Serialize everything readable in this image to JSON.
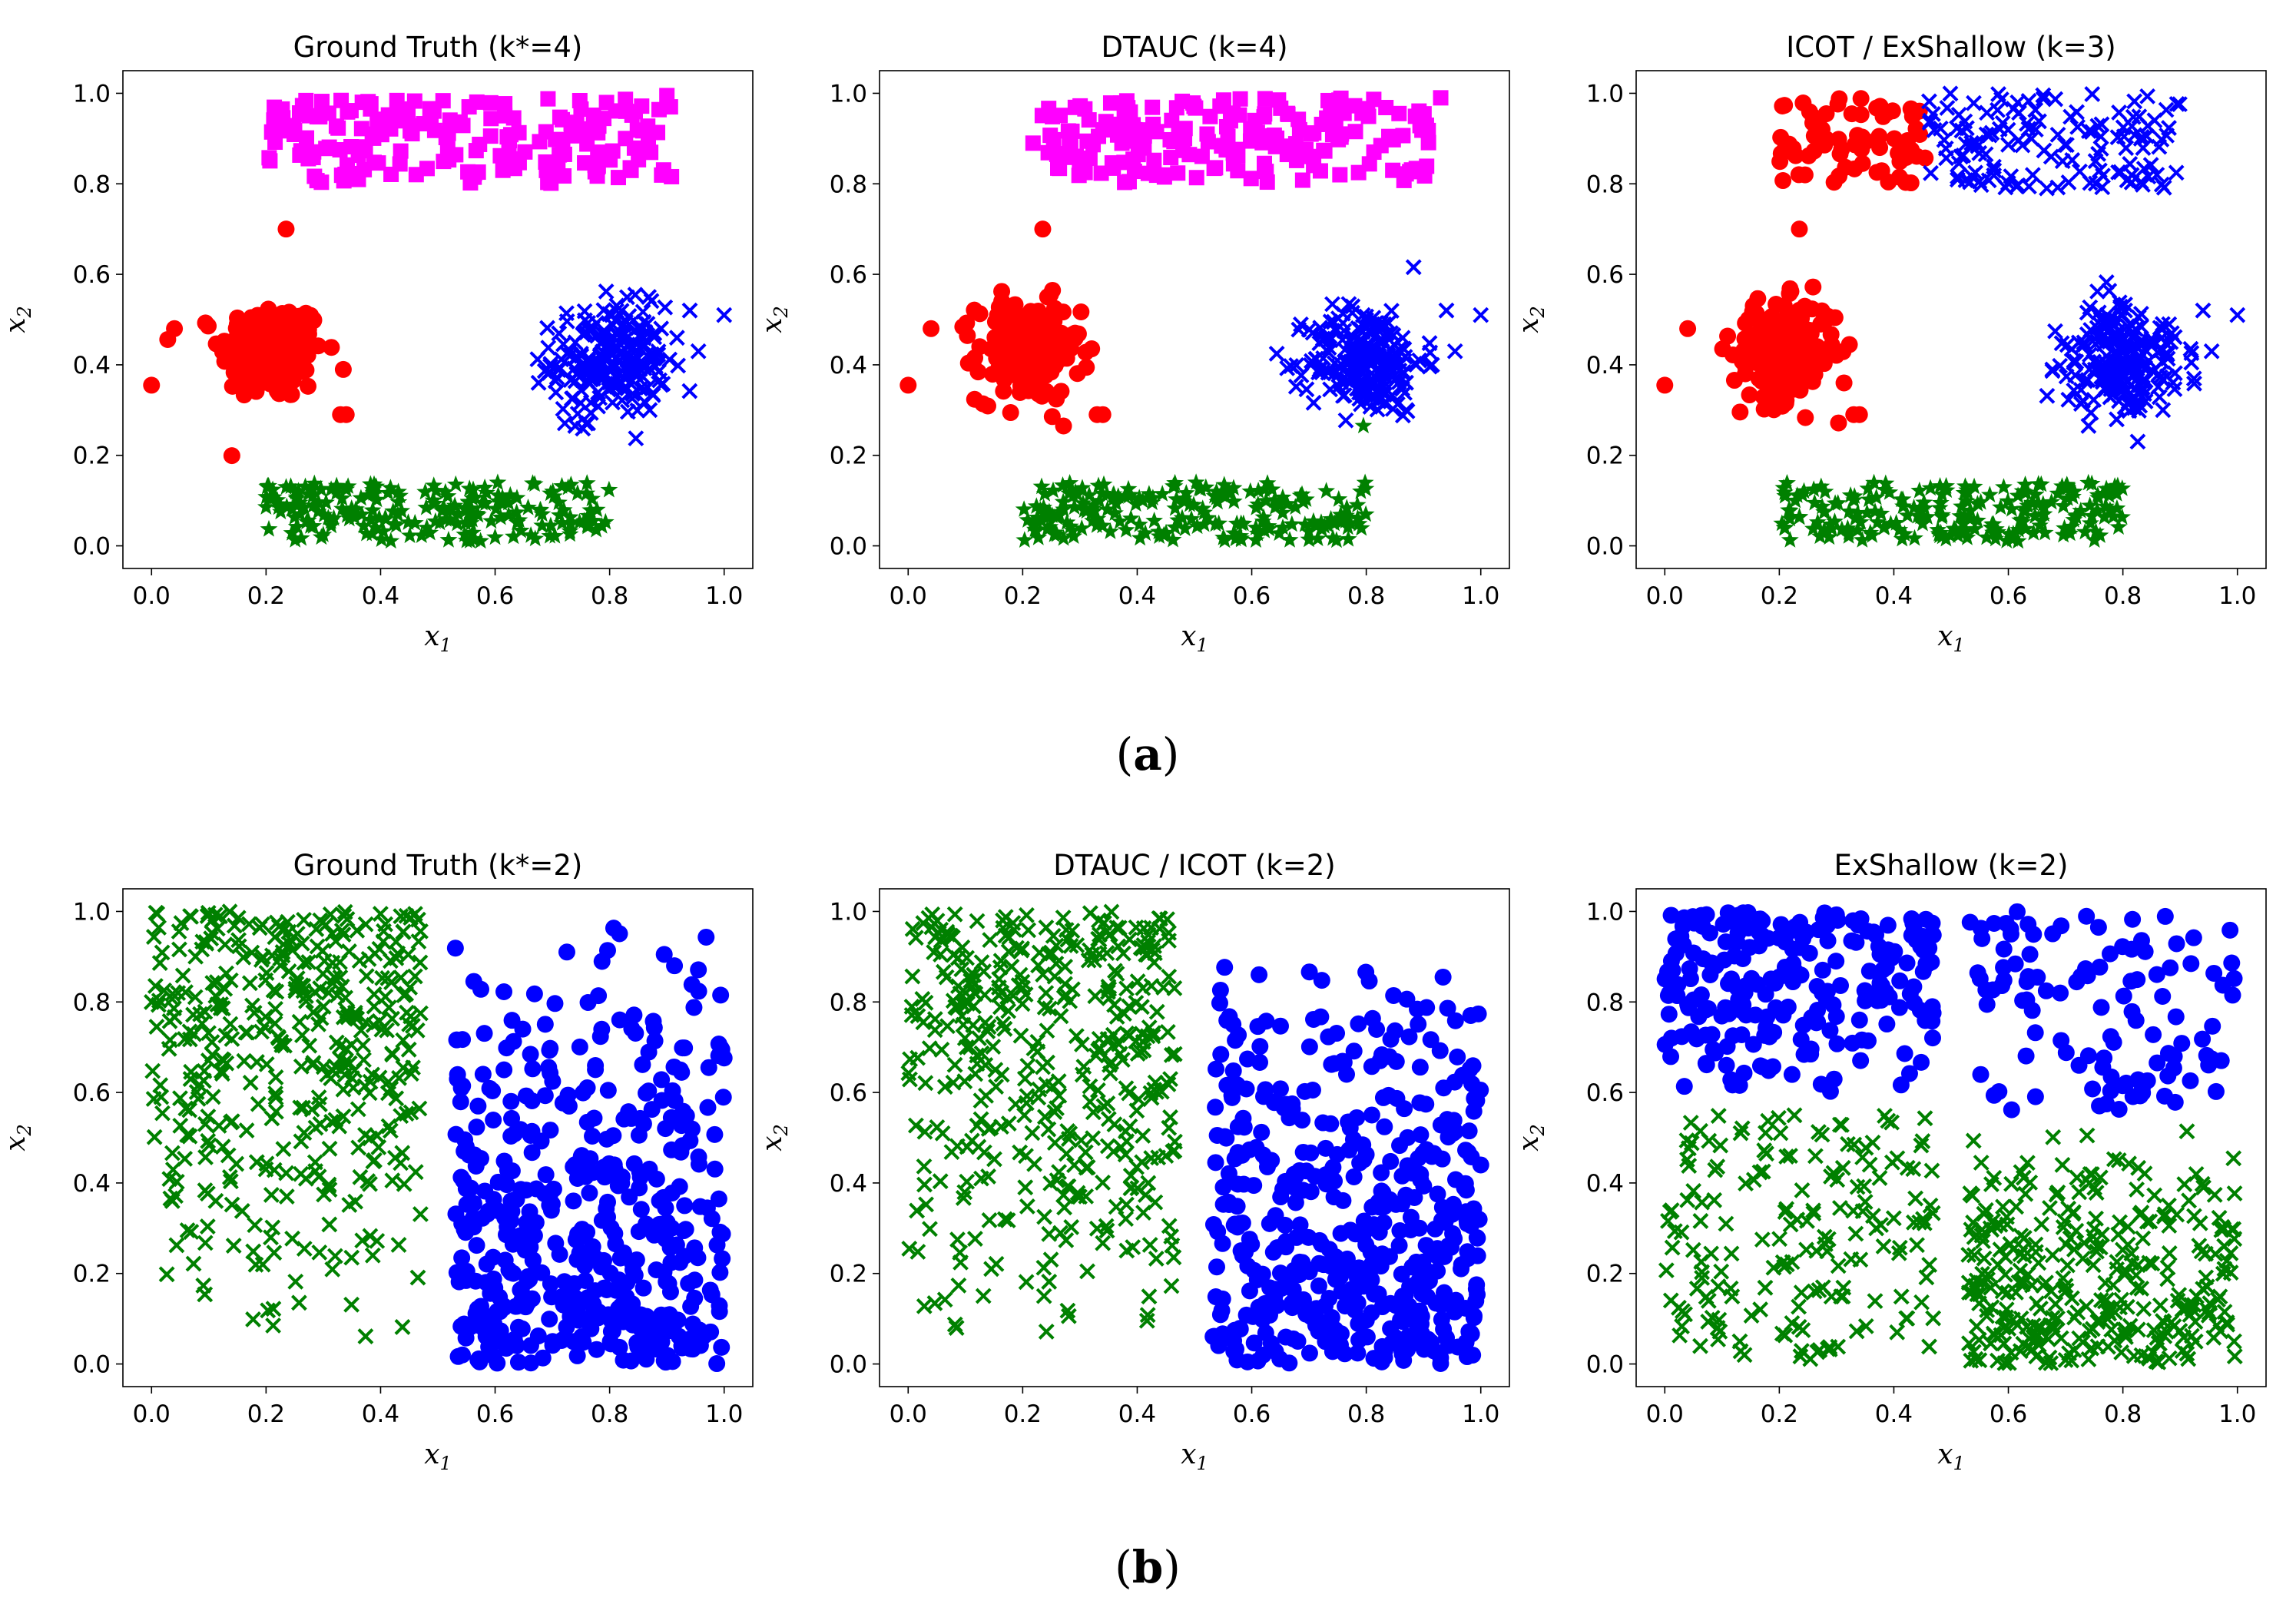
{
  "figure": {
    "captions": [
      {
        "open": "(",
        "label": "a",
        "close": ")"
      },
      {
        "open": "(",
        "label": "b",
        "close": ")"
      }
    ],
    "colors": {
      "red": "#ff0000",
      "blue": "#0000ff",
      "green": "#008000",
      "magenta": "#ff00ff"
    }
  },
  "chart_data": [
    {
      "type": "scatter",
      "row": "a",
      "title": "Ground Truth (k*=4)",
      "xlabel": "x",
      "xlabel_sub": "1",
      "ylabel": "x",
      "ylabel_sub": "2",
      "xlim": [
        -0.05,
        1.05
      ],
      "ylim": [
        -0.05,
        1.05
      ],
      "xticks": [
        "0.0",
        "0.2",
        "0.4",
        "0.6",
        "0.8",
        "1.0"
      ],
      "yticks": [
        "0.0",
        "0.2",
        "0.4",
        "0.6",
        "0.8",
        "1.0"
      ],
      "series": [
        {
          "name": "cluster-red-circles",
          "marker": "circle",
          "color": "#ff0000",
          "distribution": "gaussian",
          "center": [
            0.21,
            0.43
          ],
          "spread": [
            0.045,
            0.055
          ],
          "count": 210,
          "outliers": [
            [
              0.0,
              0.355
            ],
            [
              0.04,
              0.48
            ],
            [
              0.235,
              0.7
            ],
            [
              0.33,
              0.29
            ],
            [
              0.34,
              0.29
            ]
          ]
        },
        {
          "name": "cluster-blue-crosses",
          "marker": "x",
          "color": "#0000ff",
          "distribution": "gaussian",
          "center": [
            0.8,
            0.41
          ],
          "spread": [
            0.05,
            0.06
          ],
          "count": 230,
          "outliers": [
            [
              0.74,
              0.265
            ],
            [
              0.87,
              0.3
            ],
            [
              1.0,
              0.51
            ],
            [
              0.955,
              0.43
            ],
            [
              0.94,
              0.52
            ]
          ]
        },
        {
          "name": "cluster-magenta-squares",
          "marker": "square",
          "color": "#ff00ff",
          "distribution": "uniform",
          "xrange": [
            0.2,
            0.91
          ],
          "yrange": [
            0.8,
            0.99
          ],
          "count": 190,
          "outliers": [
            [
              0.9,
              0.995
            ]
          ]
        },
        {
          "name": "cluster-green-stars",
          "marker": "star",
          "color": "#008000",
          "distribution": "uniform",
          "xrange": [
            0.2,
            0.8
          ],
          "yrange": [
            0.01,
            0.14
          ],
          "count": 210
        }
      ]
    },
    {
      "type": "scatter",
      "row": "a",
      "title": "DTAUC (k=4)",
      "xlabel": "x",
      "xlabel_sub": "1",
      "ylabel": "x",
      "ylabel_sub": "2",
      "xlim": [
        -0.05,
        1.05
      ],
      "ylim": [
        -0.05,
        1.05
      ],
      "xticks": [
        "0.0",
        "0.2",
        "0.4",
        "0.6",
        "0.8",
        "1.0"
      ],
      "yticks": [
        "0.0",
        "0.2",
        "0.4",
        "0.6",
        "0.8",
        "1.0"
      ],
      "series": [
        {
          "name": "cluster-red-circles",
          "marker": "circle",
          "color": "#ff0000",
          "distribution": "gaussian",
          "center": [
            0.21,
            0.43
          ],
          "spread": [
            0.045,
            0.055
          ],
          "count": 210,
          "outliers": [
            [
              0.0,
              0.355
            ],
            [
              0.04,
              0.48
            ],
            [
              0.235,
              0.7
            ],
            [
              0.33,
              0.29
            ],
            [
              0.34,
              0.29
            ]
          ]
        },
        {
          "name": "cluster-blue-crosses",
          "marker": "x",
          "color": "#0000ff",
          "distribution": "gaussian",
          "center": [
            0.8,
            0.41
          ],
          "spread": [
            0.05,
            0.06
          ],
          "count": 225,
          "outliers": [
            [
              0.87,
              0.3
            ],
            [
              1.0,
              0.51
            ],
            [
              0.955,
              0.43
            ],
            [
              0.94,
              0.52
            ]
          ]
        },
        {
          "name": "cluster-magenta-squares",
          "marker": "square",
          "color": "#ff00ff",
          "distribution": "uniform",
          "xrange": [
            0.2,
            0.91
          ],
          "yrange": [
            0.8,
            0.99
          ],
          "count": 190,
          "outliers": [
            [
              0.93,
              0.99
            ]
          ]
        },
        {
          "name": "cluster-green-stars",
          "marker": "star",
          "color": "#008000",
          "distribution": "uniform",
          "xrange": [
            0.2,
            0.8
          ],
          "yrange": [
            0.01,
            0.14
          ],
          "count": 210,
          "outliers": [
            [
              0.795,
              0.265
            ]
          ]
        }
      ]
    },
    {
      "type": "scatter",
      "row": "a",
      "title": "ICOT / ExShallow (k=3)",
      "xlabel": "x",
      "xlabel_sub": "1",
      "ylabel": "x",
      "ylabel_sub": "2",
      "xlim": [
        -0.05,
        1.05
      ],
      "ylim": [
        -0.05,
        1.05
      ],
      "xticks": [
        "0.0",
        "0.2",
        "0.4",
        "0.6",
        "0.8",
        "1.0"
      ],
      "yticks": [
        "0.0",
        "0.2",
        "0.4",
        "0.6",
        "0.8",
        "1.0"
      ],
      "series": [
        {
          "name": "cluster-red-circles",
          "marker": "circle",
          "color": "#ff0000",
          "distribution": "gaussian",
          "center": [
            0.21,
            0.43
          ],
          "spread": [
            0.045,
            0.055
          ],
          "count": 210,
          "outliers": [
            [
              0.0,
              0.355
            ],
            [
              0.04,
              0.48
            ],
            [
              0.235,
              0.7
            ],
            [
              0.33,
              0.29
            ],
            [
              0.34,
              0.29
            ]
          ]
        },
        {
          "name": "cluster-red-circles-top",
          "marker": "circle",
          "color": "#ff0000",
          "distribution": "uniform",
          "xrange": [
            0.2,
            0.46
          ],
          "yrange": [
            0.8,
            0.99
          ],
          "count": 75
        },
        {
          "name": "cluster-blue-crosses",
          "marker": "x",
          "color": "#0000ff",
          "distribution": "gaussian",
          "center": [
            0.8,
            0.41
          ],
          "spread": [
            0.05,
            0.06
          ],
          "count": 230,
          "outliers": [
            [
              0.74,
              0.265
            ],
            [
              0.87,
              0.3
            ],
            [
              1.0,
              0.51
            ],
            [
              0.955,
              0.43
            ],
            [
              0.94,
              0.52
            ]
          ]
        },
        {
          "name": "cluster-blue-crosses-top",
          "marker": "x",
          "color": "#0000ff",
          "distribution": "uniform",
          "xrange": [
            0.46,
            0.9
          ],
          "yrange": [
            0.79,
            1.0
          ],
          "count": 140
        },
        {
          "name": "cluster-green-stars",
          "marker": "star",
          "color": "#008000",
          "distribution": "uniform",
          "xrange": [
            0.2,
            0.8
          ],
          "yrange": [
            0.01,
            0.14
          ],
          "count": 210
        }
      ]
    },
    {
      "type": "scatter",
      "row": "b",
      "title": "Ground Truth (k*=2)",
      "xlabel": "x",
      "xlabel_sub": "1",
      "ylabel": "x",
      "ylabel_sub": "2",
      "xlim": [
        -0.05,
        1.05
      ],
      "ylim": [
        -0.05,
        1.05
      ],
      "xticks": [
        "0.0",
        "0.2",
        "0.4",
        "0.6",
        "0.8",
        "1.0"
      ],
      "yticks": [
        "0.0",
        "0.2",
        "0.4",
        "0.6",
        "0.8",
        "1.0"
      ],
      "series": [
        {
          "name": "cluster-green-crosses",
          "marker": "x",
          "color": "#008000",
          "distribution": "uniform-biased-top",
          "xrange": [
            0.0,
            0.47
          ],
          "yrange": [
            0.0,
            1.0
          ],
          "count": 420
        },
        {
          "name": "cluster-blue-circles",
          "marker": "circle",
          "color": "#0000ff",
          "distribution": "uniform-biased-bottom",
          "xrange": [
            0.53,
            1.0
          ],
          "yrange": [
            0.0,
            1.0
          ],
          "count": 470
        }
      ]
    },
    {
      "type": "scatter",
      "row": "b",
      "title": "DTAUC / ICOT (k=2)",
      "xlabel": "x",
      "xlabel_sub": "1",
      "ylabel": "x",
      "ylabel_sub": "2",
      "xlim": [
        -0.05,
        1.05
      ],
      "ylim": [
        -0.05,
        1.05
      ],
      "xticks": [
        "0.0",
        "0.2",
        "0.4",
        "0.6",
        "0.8",
        "1.0"
      ],
      "yticks": [
        "0.0",
        "0.2",
        "0.4",
        "0.6",
        "0.8",
        "1.0"
      ],
      "series": [
        {
          "name": "cluster-green-crosses",
          "marker": "x",
          "color": "#008000",
          "distribution": "uniform-biased-top",
          "xrange": [
            0.0,
            0.47
          ],
          "yrange": [
            0.0,
            1.0
          ],
          "count": 420
        },
        {
          "name": "cluster-blue-circles",
          "marker": "circle",
          "color": "#0000ff",
          "distribution": "uniform-biased-bottom",
          "xrange": [
            0.53,
            1.0
          ],
          "yrange": [
            0.0,
            1.0
          ],
          "count": 470
        }
      ]
    },
    {
      "type": "scatter",
      "row": "b",
      "title": "ExShallow (k=2)",
      "xlabel": "x",
      "xlabel_sub": "1",
      "ylabel": "x",
      "ylabel_sub": "2",
      "xlim": [
        -0.05,
        1.05
      ],
      "ylim": [
        -0.05,
        1.05
      ],
      "xticks": [
        "0.0",
        "0.2",
        "0.4",
        "0.6",
        "0.8",
        "1.0"
      ],
      "yticks": [
        "0.0",
        "0.2",
        "0.4",
        "0.6",
        "0.8",
        "1.0"
      ],
      "series": [
        {
          "name": "cluster-blue-circles-left",
          "marker": "circle",
          "color": "#0000ff",
          "distribution": "uniform-biased-top",
          "xrange": [
            0.0,
            0.47
          ],
          "yrange": [
            0.56,
            1.0
          ],
          "count": 240
        },
        {
          "name": "cluster-blue-circles-right",
          "marker": "circle",
          "color": "#0000ff",
          "distribution": "uniform",
          "xrange": [
            0.53,
            1.0
          ],
          "yrange": [
            0.56,
            1.0
          ],
          "count": 110
        },
        {
          "name": "cluster-green-crosses-left",
          "marker": "x",
          "color": "#008000",
          "distribution": "uniform",
          "xrange": [
            0.0,
            0.47
          ],
          "yrange": [
            0.0,
            0.55
          ],
          "count": 180
        },
        {
          "name": "cluster-green-crosses-right",
          "marker": "x",
          "color": "#008000",
          "distribution": "uniform-biased-bottom",
          "xrange": [
            0.53,
            1.0
          ],
          "yrange": [
            0.0,
            0.55
          ],
          "count": 330
        }
      ]
    }
  ]
}
